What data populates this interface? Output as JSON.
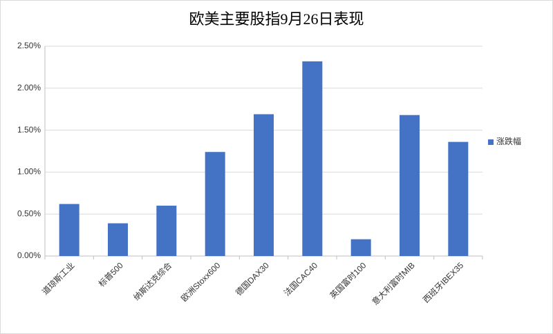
{
  "chart_data": {
    "type": "bar",
    "title": "欧美主要股指9月26日表现",
    "categories": [
      "道琼斯工业",
      "标普500",
      "纳斯达克综合",
      "欧洲Stoxx600",
      "德国DAX30",
      "法国CAC40",
      "英国富时100",
      "意大利富时MIB",
      "西班牙IBEX35"
    ],
    "series": [
      {
        "name": "涨跌幅",
        "color": "#4472c4",
        "values": [
          0.62,
          0.39,
          0.6,
          1.24,
          1.69,
          2.32,
          0.2,
          1.68,
          1.36
        ]
      }
    ],
    "ylim": [
      0,
      2.5
    ],
    "yticks": [
      {
        "value": 0,
        "label": "0.00%"
      },
      {
        "value": 0.5,
        "label": "0.50%"
      },
      {
        "value": 1,
        "label": "1.00%"
      },
      {
        "value": 1.5,
        "label": "1.50%"
      },
      {
        "value": 2,
        "label": "2.00%"
      },
      {
        "value": 2.5,
        "label": "2.50%"
      }
    ],
    "grid": true,
    "legend": "right"
  }
}
